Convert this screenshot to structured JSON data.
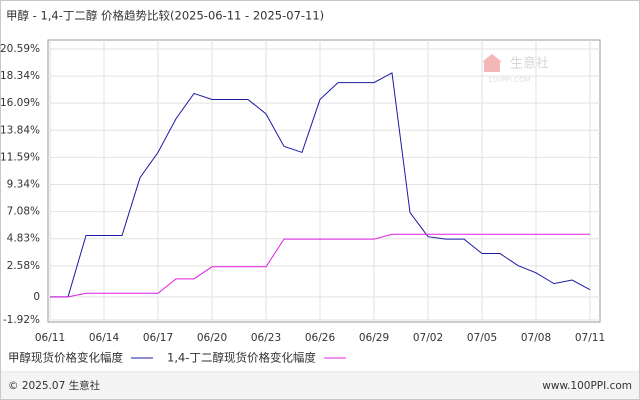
{
  "chart_data": {
    "type": "line",
    "title": "甲醇 - 1,4-丁二醇 价格趋势比较(2025-06-11 - 2025-07-11)",
    "categories": [
      "06/11",
      null,
      null,
      "06/14",
      null,
      null,
      "06/17",
      null,
      null,
      "06/20",
      null,
      null,
      "06/23",
      null,
      null,
      "06/26",
      null,
      null,
      "06/29",
      null,
      null,
      "07/02",
      null,
      null,
      "07/05",
      null,
      null,
      "07/08",
      null,
      null,
      "07/11"
    ],
    "series": [
      {
        "name": "甲醇现货价格变化幅度",
        "color": "#1a1aa6",
        "values": [
          0,
          0,
          5.1,
          5.1,
          5.1,
          9.9,
          12.0,
          14.8,
          16.9,
          16.4,
          16.4,
          16.4,
          15.2,
          12.5,
          12.0,
          16.4,
          17.8,
          17.8,
          17.8,
          18.6,
          7.0,
          5.0,
          4.8,
          4.8,
          3.6,
          3.6,
          2.6,
          2.0,
          1.1,
          1.4,
          0.6
        ]
      },
      {
        "name": "1,4-丁二醇现货价格变化幅度",
        "color": "#e020e0",
        "values": [
          0,
          0,
          0.3,
          0.3,
          0.3,
          0.3,
          0.3,
          1.5,
          1.5,
          2.5,
          2.5,
          2.5,
          2.5,
          4.8,
          4.8,
          4.8,
          4.8,
          4.8,
          4.8,
          5.2,
          5.2,
          5.2,
          5.2,
          5.2,
          5.2,
          5.2,
          5.2,
          5.2,
          5.2,
          5.2,
          5.2
        ]
      }
    ],
    "ylim": [
      -1.92,
      20.59
    ],
    "yticks": [
      {
        "value": -1.92,
        "label": "-1.92%"
      },
      0,
      {
        "value": 2.58,
        "label": "2.58%"
      },
      {
        "value": 4.83,
        "label": "4.83%"
      },
      {
        "value": 7.08,
        "label": "7.08%"
      },
      {
        "value": 9.34,
        "label": "9.34%"
      },
      {
        "value": 11.59,
        "label": "11.59%"
      },
      {
        "value": 13.84,
        "label": "13.84%"
      },
      {
        "value": 16.09,
        "label": "16.09%"
      },
      {
        "value": 18.34,
        "label": "18.34%"
      },
      {
        "value": 20.59,
        "label": "20.59%"
      }
    ],
    "grid": true,
    "watermark": {
      "name": "生意社",
      "site": "100PPI.COM"
    },
    "footer": {
      "left": "© 2025.07 生意社",
      "right": "www.100PPI.com"
    }
  }
}
